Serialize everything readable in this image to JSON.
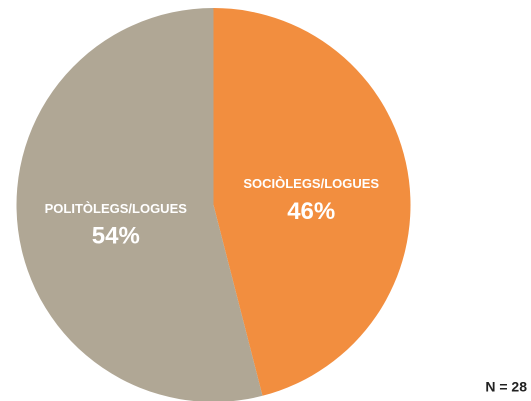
{
  "chart_data": {
    "type": "pie",
    "categories": [
      "SOCIÒLEGS/LOGUES",
      "POLITÒLEGS/LOGUES"
    ],
    "values": [
      46,
      54
    ],
    "value_labels": [
      "46%",
      "54%"
    ],
    "colors": [
      "#f28e3f",
      "#b0a795"
    ],
    "annotation": "N = 28"
  }
}
